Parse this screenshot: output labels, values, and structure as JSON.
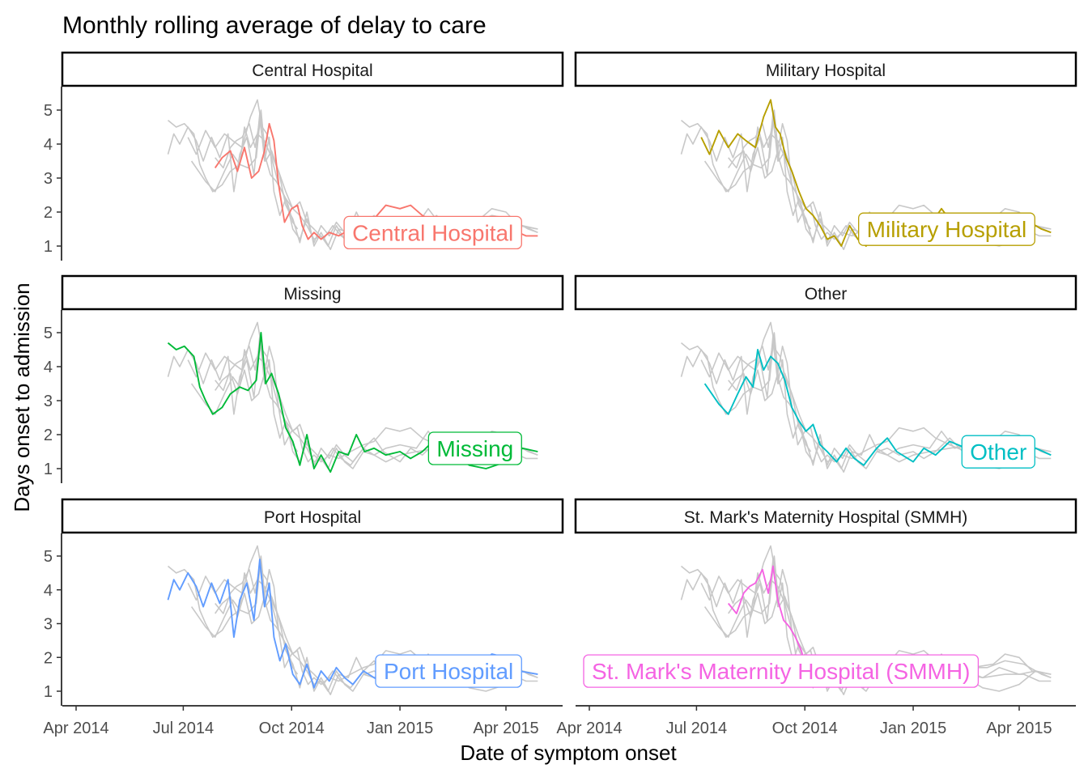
{
  "chart_data": {
    "type": "line",
    "title": "Monthly rolling average of delay to care",
    "xlabel": "Date of symptom onset",
    "ylabel": "Days onset to admission",
    "x_ticks": [
      "Apr 2014",
      "Jul 2014",
      "Oct 2014",
      "Jan 2015",
      "Apr 2015"
    ],
    "y_ticks": [
      1,
      2,
      3,
      4,
      5
    ],
    "ylim": [
      0.6,
      5.5
    ],
    "grid": false,
    "background_series_color": "#c8c8c8",
    "panels": [
      {
        "name": "Central Hospital",
        "color": "#F8766D",
        "points": [
          [
            "2014-07-28",
            3.3
          ],
          [
            "2014-08-03",
            3.6
          ],
          [
            "2014-08-10",
            3.8
          ],
          [
            "2014-08-16",
            3.2
          ],
          [
            "2014-08-22",
            3.9
          ],
          [
            "2014-08-28",
            3.0
          ],
          [
            "2014-09-03",
            3.2
          ],
          [
            "2014-09-08",
            3.8
          ],
          [
            "2014-09-12",
            4.6
          ],
          [
            "2014-09-16",
            4.1
          ],
          [
            "2014-09-20",
            2.8
          ],
          [
            "2014-09-25",
            1.7
          ],
          [
            "2014-10-01",
            2.1
          ],
          [
            "2014-10-06",
            2.2
          ],
          [
            "2014-10-10",
            1.6
          ],
          [
            "2014-10-15",
            1.2
          ],
          [
            "2014-10-20",
            1.4
          ],
          [
            "2014-10-26",
            1.2
          ],
          [
            "2014-11-02",
            1.4
          ],
          [
            "2014-11-10",
            1.3
          ],
          [
            "2014-11-20",
            1.5
          ],
          [
            "2014-12-01",
            1.7
          ],
          [
            "2014-12-10",
            1.8
          ],
          [
            "2014-12-20",
            2.2
          ],
          [
            "2015-01-01",
            2.1
          ],
          [
            "2015-01-10",
            2.2
          ],
          [
            "2015-01-20",
            1.9
          ],
          [
            "2015-02-01",
            1.7
          ],
          [
            "2015-02-15",
            1.5
          ],
          [
            "2015-03-01",
            1.4
          ],
          [
            "2015-03-20",
            1.5
          ],
          [
            "2015-04-05",
            1.5
          ],
          [
            "2015-04-18",
            1.3
          ],
          [
            "2015-04-28",
            1.3
          ]
        ]
      },
      {
        "name": "Military Hospital",
        "color": "#B79F00",
        "points": [
          [
            "2014-07-05",
            4.2
          ],
          [
            "2014-07-12",
            3.7
          ],
          [
            "2014-07-20",
            4.4
          ],
          [
            "2014-07-28",
            3.9
          ],
          [
            "2014-08-05",
            4.3
          ],
          [
            "2014-08-12",
            4.1
          ],
          [
            "2014-08-20",
            3.9
          ],
          [
            "2014-08-27",
            4.8
          ],
          [
            "2014-09-02",
            5.3
          ],
          [
            "2014-09-06",
            4.5
          ],
          [
            "2014-09-10",
            4.3
          ],
          [
            "2014-09-15",
            3.6
          ],
          [
            "2014-09-20",
            3.2
          ],
          [
            "2014-09-26",
            2.6
          ],
          [
            "2014-10-02",
            2.1
          ],
          [
            "2014-10-08",
            1.9
          ],
          [
            "2014-10-14",
            1.6
          ],
          [
            "2014-10-20",
            1.2
          ],
          [
            "2014-10-26",
            1.3
          ],
          [
            "2014-11-01",
            1.0
          ],
          [
            "2014-11-08",
            1.6
          ],
          [
            "2014-11-15",
            1.2
          ],
          [
            "2014-11-22",
            1.0
          ],
          [
            "2014-12-01",
            1.5
          ],
          [
            "2014-12-10",
            1.4
          ],
          [
            "2014-12-20",
            1.6
          ],
          [
            "2015-01-01",
            1.7
          ],
          [
            "2015-01-15",
            1.6
          ],
          [
            "2015-01-25",
            2.1
          ],
          [
            "2015-02-05",
            1.6
          ],
          [
            "2015-02-20",
            1.7
          ],
          [
            "2015-03-05",
            1.7
          ],
          [
            "2015-03-20",
            1.9
          ],
          [
            "2015-04-05",
            1.8
          ],
          [
            "2015-04-20",
            1.5
          ],
          [
            "2015-04-28",
            1.4
          ]
        ]
      },
      {
        "name": "Missing",
        "color": "#00BA38",
        "points": [
          [
            "2014-06-18",
            4.7
          ],
          [
            "2014-06-25",
            4.5
          ],
          [
            "2014-07-02",
            4.6
          ],
          [
            "2014-07-10",
            4.3
          ],
          [
            "2014-07-15",
            3.4
          ],
          [
            "2014-07-20",
            3.0
          ],
          [
            "2014-07-26",
            2.6
          ],
          [
            "2014-08-03",
            2.8
          ],
          [
            "2014-08-10",
            3.2
          ],
          [
            "2014-08-18",
            3.4
          ],
          [
            "2014-08-25",
            3.3
          ],
          [
            "2014-09-01",
            3.6
          ],
          [
            "2014-09-05",
            5.0
          ],
          [
            "2014-09-09",
            3.5
          ],
          [
            "2014-09-14",
            3.8
          ],
          [
            "2014-09-20",
            3.2
          ],
          [
            "2014-09-26",
            2.2
          ],
          [
            "2014-10-02",
            1.8
          ],
          [
            "2014-10-08",
            1.1
          ],
          [
            "2014-10-14",
            2.0
          ],
          [
            "2014-10-20",
            1.0
          ],
          [
            "2014-10-26",
            1.4
          ],
          [
            "2014-11-03",
            0.9
          ],
          [
            "2014-11-10",
            1.5
          ],
          [
            "2014-11-18",
            1.4
          ],
          [
            "2014-11-25",
            2.0
          ],
          [
            "2014-12-02",
            1.5
          ],
          [
            "2014-12-10",
            1.6
          ],
          [
            "2014-12-20",
            1.4
          ],
          [
            "2015-01-01",
            1.5
          ],
          [
            "2015-01-10",
            1.3
          ],
          [
            "2015-01-20",
            1.5
          ],
          [
            "2015-02-01",
            1.9
          ],
          [
            "2015-02-15",
            1.4
          ],
          [
            "2015-03-01",
            1.1
          ],
          [
            "2015-03-15",
            1.0
          ],
          [
            "2015-04-01",
            1.2
          ],
          [
            "2015-04-15",
            1.6
          ],
          [
            "2015-04-28",
            1.5
          ]
        ]
      },
      {
        "name": "Other",
        "color": "#00BFC4",
        "points": [
          [
            "2014-07-08",
            3.5
          ],
          [
            "2014-07-14",
            3.2
          ],
          [
            "2014-07-20",
            2.9
          ],
          [
            "2014-07-28",
            2.6
          ],
          [
            "2014-08-05",
            3.2
          ],
          [
            "2014-08-12",
            3.7
          ],
          [
            "2014-08-18",
            3.4
          ],
          [
            "2014-08-22",
            4.5
          ],
          [
            "2014-08-27",
            3.9
          ],
          [
            "2014-09-02",
            4.3
          ],
          [
            "2014-09-08",
            4.1
          ],
          [
            "2014-09-14",
            3.6
          ],
          [
            "2014-09-20",
            2.8
          ],
          [
            "2014-09-26",
            2.4
          ],
          [
            "2014-10-02",
            2.1
          ],
          [
            "2014-10-08",
            2.3
          ],
          [
            "2014-10-14",
            1.7
          ],
          [
            "2014-10-20",
            1.5
          ],
          [
            "2014-10-28",
            1.2
          ],
          [
            "2014-11-05",
            1.6
          ],
          [
            "2014-11-12",
            1.3
          ],
          [
            "2014-11-20",
            1.1
          ],
          [
            "2014-12-01",
            1.6
          ],
          [
            "2014-12-10",
            1.9
          ],
          [
            "2014-12-18",
            1.5
          ],
          [
            "2015-01-01",
            1.2
          ],
          [
            "2015-01-10",
            1.6
          ],
          [
            "2015-01-20",
            1.4
          ],
          [
            "2015-02-01",
            1.8
          ],
          [
            "2015-02-15",
            1.6
          ],
          [
            "2015-03-01",
            1.4
          ],
          [
            "2015-03-15",
            1.7
          ],
          [
            "2015-04-01",
            1.5
          ],
          [
            "2015-04-15",
            1.6
          ],
          [
            "2015-04-28",
            1.4
          ]
        ]
      },
      {
        "name": "Port Hospital",
        "color": "#619CFF",
        "points": [
          [
            "2014-06-18",
            3.7
          ],
          [
            "2014-06-23",
            4.3
          ],
          [
            "2014-06-28",
            4.0
          ],
          [
            "2014-07-05",
            4.5
          ],
          [
            "2014-07-12",
            4.1
          ],
          [
            "2014-07-18",
            3.5
          ],
          [
            "2014-07-25",
            4.2
          ],
          [
            "2014-08-01",
            3.6
          ],
          [
            "2014-08-08",
            4.3
          ],
          [
            "2014-08-13",
            2.6
          ],
          [
            "2014-08-18",
            3.7
          ],
          [
            "2014-08-24",
            4.2
          ],
          [
            "2014-08-30",
            3.1
          ],
          [
            "2014-09-04",
            4.9
          ],
          [
            "2014-09-08",
            3.5
          ],
          [
            "2014-09-12",
            4.2
          ],
          [
            "2014-09-16",
            2.6
          ],
          [
            "2014-09-21",
            1.9
          ],
          [
            "2014-09-26",
            2.4
          ],
          [
            "2014-10-02",
            1.5
          ],
          [
            "2014-10-08",
            1.2
          ],
          [
            "2014-10-14",
            1.8
          ],
          [
            "2014-10-20",
            1.1
          ],
          [
            "2014-10-26",
            1.6
          ],
          [
            "2014-11-02",
            1.3
          ],
          [
            "2014-11-08",
            1.7
          ],
          [
            "2014-11-15",
            1.4
          ],
          [
            "2014-11-22",
            1.2
          ],
          [
            "2014-12-01",
            1.6
          ],
          [
            "2014-12-10",
            1.4
          ],
          [
            "2014-12-20",
            1.2
          ],
          [
            "2015-01-01",
            1.4
          ],
          [
            "2015-01-15",
            1.5
          ],
          [
            "2015-02-01",
            1.6
          ],
          [
            "2015-02-20",
            1.7
          ],
          [
            "2015-03-10",
            1.8
          ],
          [
            "2015-03-20",
            2.1
          ],
          [
            "2015-04-01",
            2.0
          ],
          [
            "2015-04-12",
            1.6
          ],
          [
            "2015-04-28",
            1.5
          ]
        ]
      },
      {
        "name": "St. Mark's Maternity Hospital (SMMH)",
        "color": "#F564E3",
        "points": [
          [
            "2014-07-28",
            3.6
          ],
          [
            "2014-08-04",
            3.3
          ],
          [
            "2014-08-10",
            3.9
          ],
          [
            "2014-08-15",
            4.1
          ],
          [
            "2014-08-20",
            4.2
          ],
          [
            "2014-08-26",
            4.6
          ],
          [
            "2014-08-31",
            3.9
          ],
          [
            "2014-09-04",
            4.7
          ],
          [
            "2014-09-08",
            3.7
          ],
          [
            "2014-09-13",
            3.1
          ],
          [
            "2014-09-18",
            2.9
          ],
          [
            "2014-09-23",
            2.6
          ],
          [
            "2014-09-28",
            2.2
          ],
          [
            "2014-10-02",
            1.7
          ],
          [
            "2014-10-06",
            1.5
          ]
        ]
      }
    ]
  }
}
